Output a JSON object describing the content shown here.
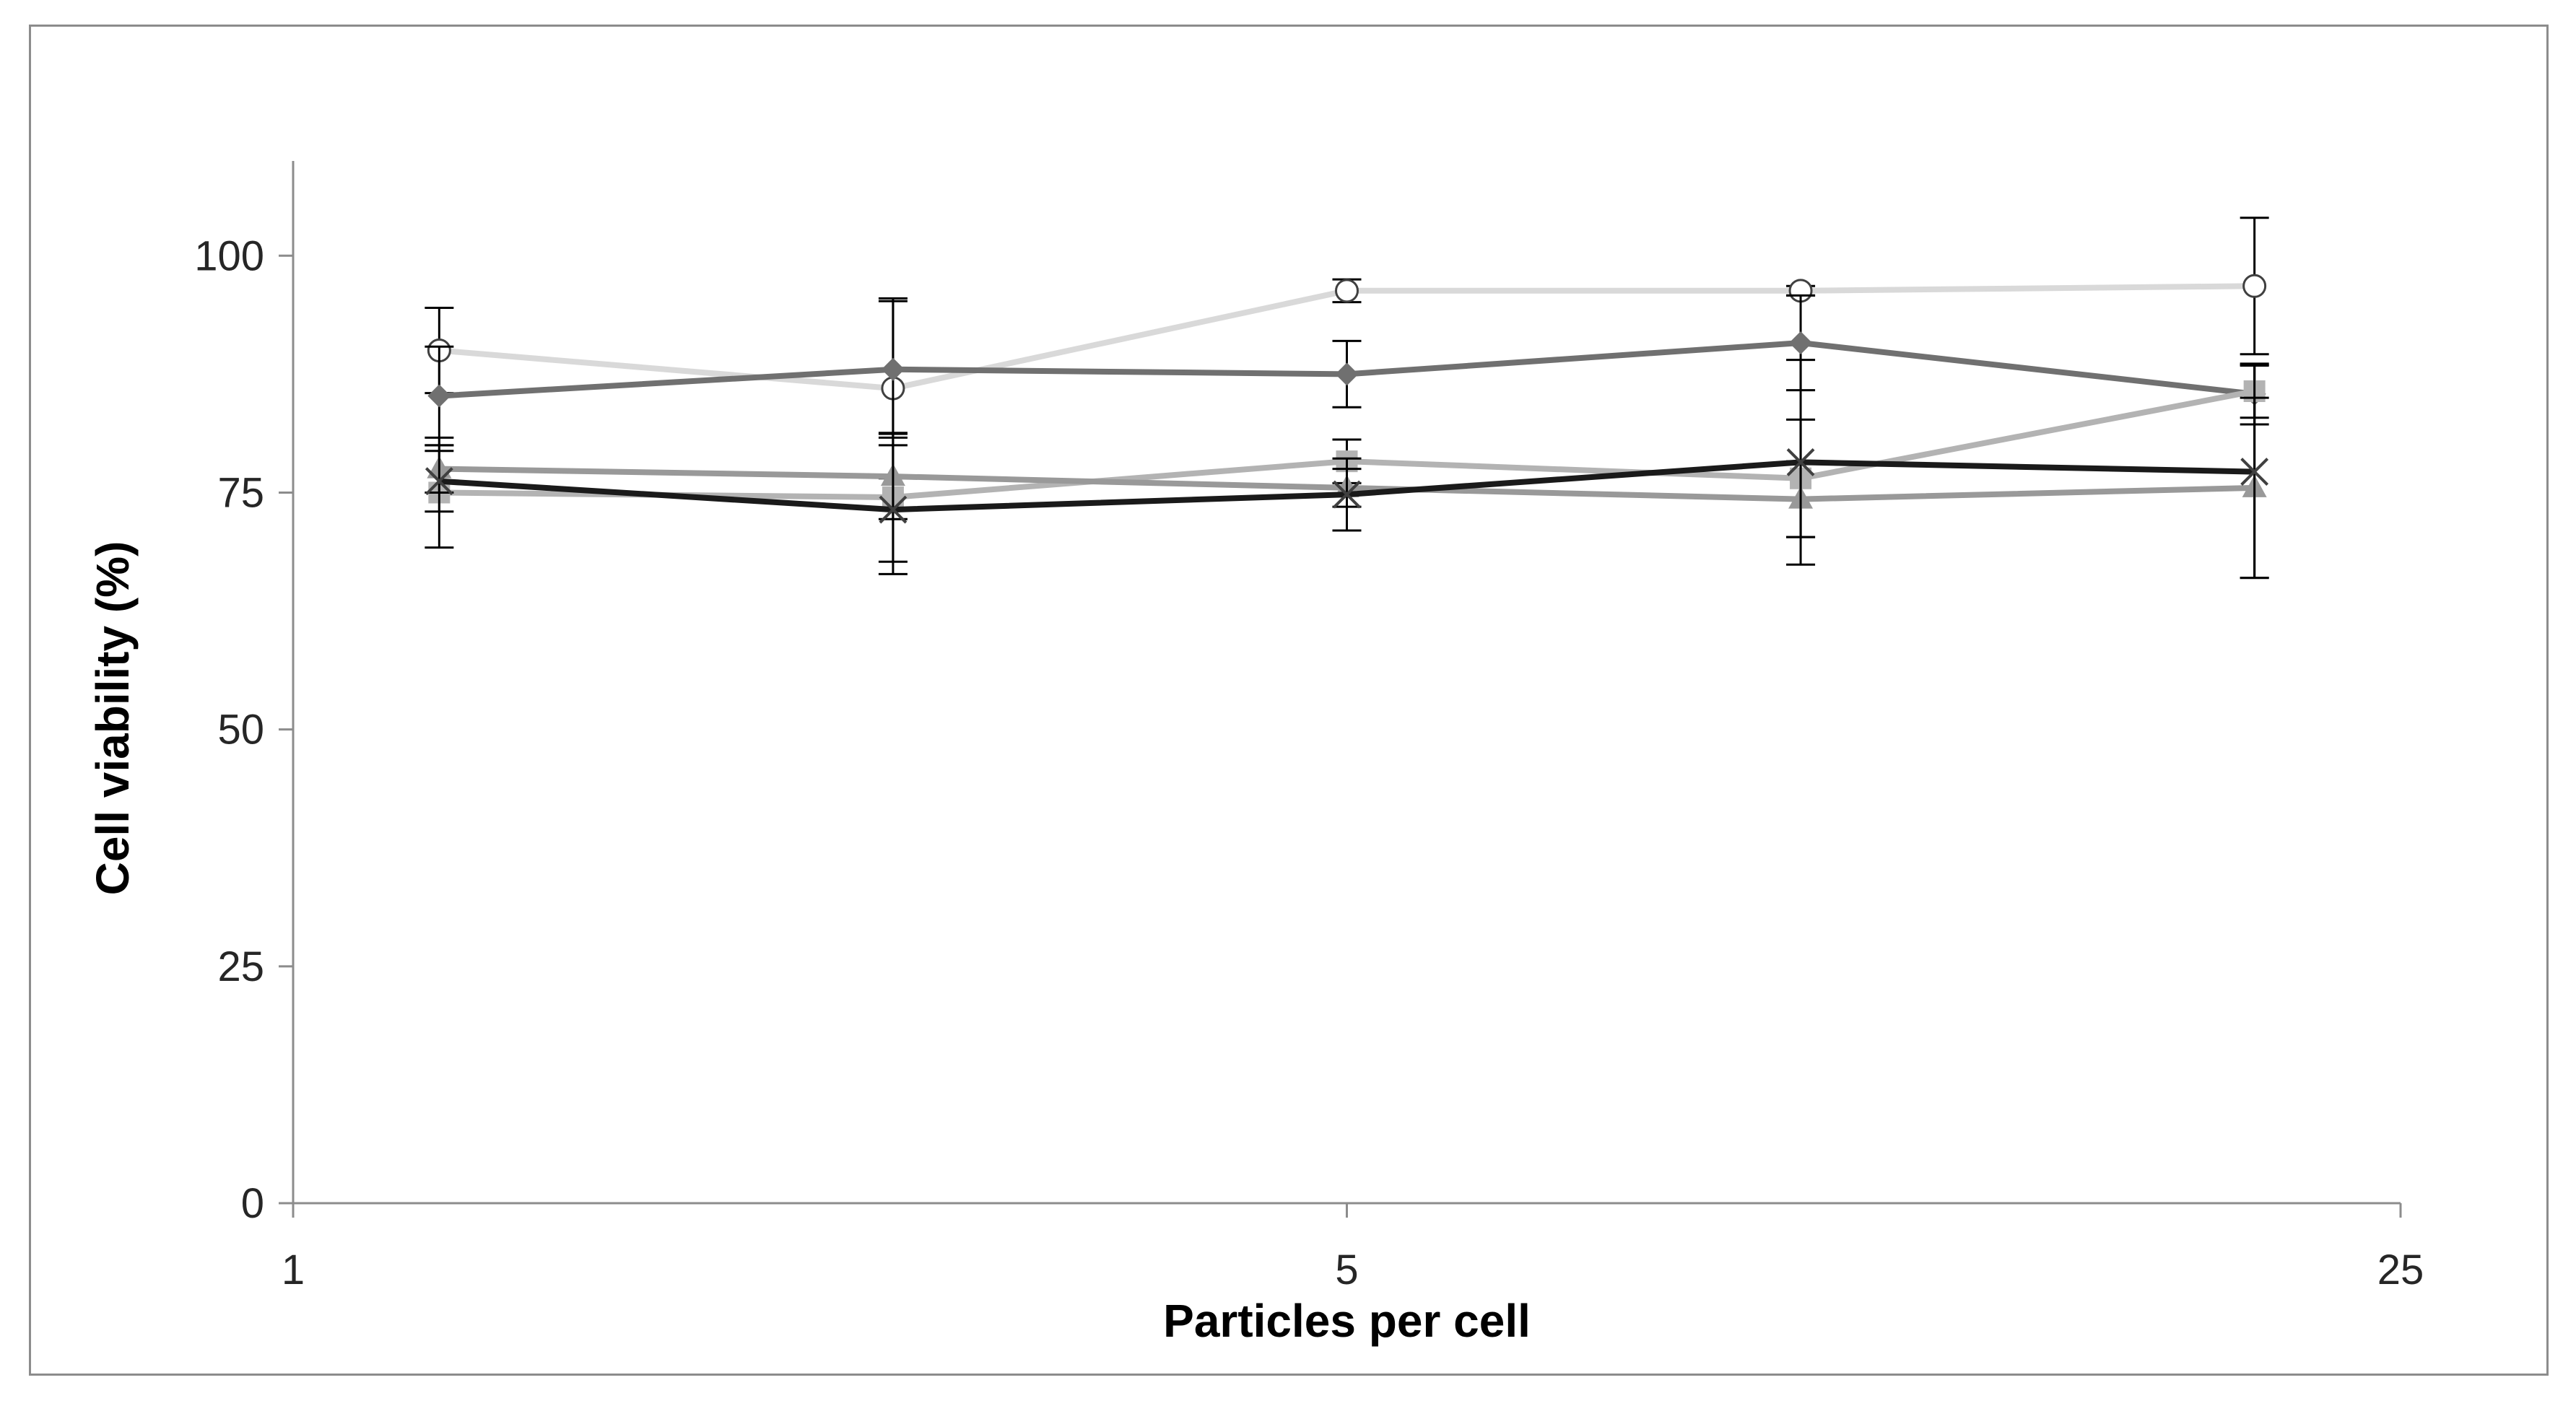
{
  "chart_data": {
    "type": "line",
    "title": "",
    "xlabel": "Particles per cell",
    "ylabel": "Cell viability (%)",
    "x_scale": "log",
    "xlim": [
      1,
      25
    ],
    "ylim": [
      0,
      110
    ],
    "x_ticks": [
      1,
      5,
      25
    ],
    "x_tick_labels": [
      "1",
      "5",
      "25"
    ],
    "y_ticks": [
      0,
      25,
      50,
      75,
      100
    ],
    "y_tick_labels": [
      "0",
      "25",
      "50",
      "75",
      "100"
    ],
    "grid": false,
    "legend": "none",
    "x": [
      1.25,
      2.5,
      5,
      10,
      20
    ],
    "series": [
      {
        "marker": "circle-open",
        "color": "#d9d9d9",
        "values": [
          90,
          86,
          96.3,
          96.3,
          96.8
        ],
        "errors": [
          4.5,
          9.5,
          1.2,
          0.5,
          7.2
        ]
      },
      {
        "marker": "diamond",
        "color": "#707070",
        "values": [
          85.2,
          88,
          87.5,
          90.8,
          85.4
        ],
        "errors": [
          5.2,
          7.2,
          3.5,
          5,
          3.2
        ]
      },
      {
        "marker": "square",
        "color": "#b3b3b3",
        "values": [
          75,
          74.5,
          78.3,
          76.5,
          85.7
        ],
        "errors": [
          5.8,
          6.8,
          2.3,
          6.2,
          2.8
        ]
      },
      {
        "marker": "triangle",
        "color": "#999999",
        "values": [
          77.5,
          76.7,
          75.5,
          74.3,
          75.5
        ],
        "errors": [
          2.5,
          4.5,
          2,
          4,
          9.5
        ]
      },
      {
        "marker": "x",
        "color": "#1a1a1a",
        "values": [
          76.2,
          73.2,
          74.8,
          78.2,
          77.2
        ],
        "errors": [
          3.2,
          6.8,
          3.8,
          10.8,
          11.2
        ]
      }
    ]
  }
}
